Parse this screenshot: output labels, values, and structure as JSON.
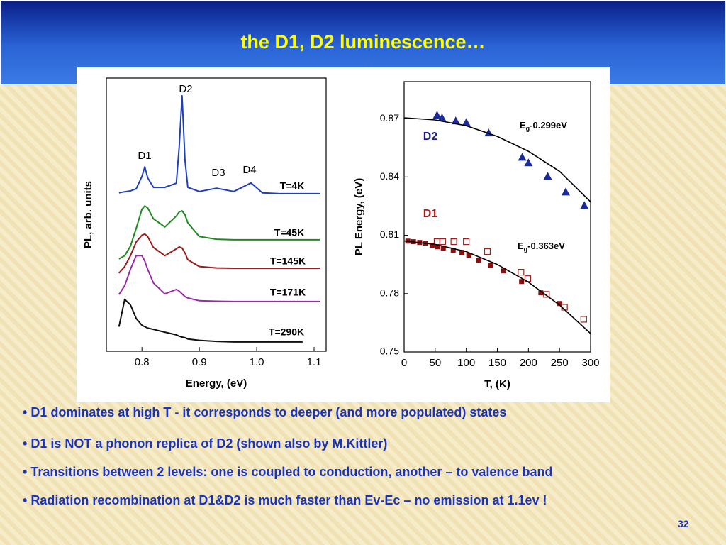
{
  "header": {
    "title": "the D1, D2 luminescence…"
  },
  "bullets": [
    "D1 dominates at high T - it corresponds to deeper (and more populated) states",
    "D1 is NOT a phonon replica of D2 (shown also by M.Kittler)",
    "Transitions between 2 levels: one is coupled to conduction, another – to valence band",
    "Radiation recombination at D1&D2 is much faster than Ev-Ec – no emission at 1.1ev !"
  ],
  "page_number": "32",
  "chart_data": [
    {
      "type": "line",
      "x_label": "Energy, (eV)",
      "y_label": "PL, arb. units",
      "xlim": [
        0.738,
        1.121
      ],
      "ylim": [
        0,
        10
      ],
      "xticks": [
        0.8,
        0.9,
        {
          "value": 1,
          "label": "1.0"
        },
        1.1
      ],
      "x": [
        0.76,
        0.77,
        0.78,
        0.79,
        0.8,
        0.805,
        0.81,
        0.82,
        0.84,
        0.86,
        0.865,
        0.87,
        0.875,
        0.88,
        0.9,
        0.93,
        0.96,
        0.99,
        1.01,
        1.04,
        1.08,
        1.11
      ],
      "annotations": [
        "D2",
        "D1",
        "D3",
        "D4"
      ],
      "series": [
        {
          "name": "T=4K",
          "color": "#1f3fbf",
          "values": [
            5.8,
            5.84,
            5.87,
            5.95,
            6.4,
            6.75,
            6.35,
            6.0,
            6.0,
            6.15,
            7.5,
            9.35,
            7.0,
            6.0,
            5.85,
            5.97,
            5.85,
            6.16,
            5.8,
            5.77,
            5.77,
            5.77
          ]
        },
        {
          "name": "T=45K",
          "color": "#1e8a1e",
          "values": [
            3.38,
            3.5,
            3.85,
            4.5,
            5.2,
            5.32,
            5.25,
            4.85,
            4.55,
            4.95,
            5.1,
            5.14,
            5.0,
            4.7,
            4.2,
            4.1,
            4.08,
            4.08,
            4.08,
            4.08,
            4.08,
            4.08
          ]
        },
        {
          "name": "T=145K",
          "color": "#9a1c1c",
          "values": [
            2.86,
            3.1,
            3.5,
            4.0,
            4.25,
            4.29,
            4.2,
            3.8,
            3.5,
            3.75,
            3.82,
            3.78,
            3.6,
            3.35,
            3.1,
            3.05,
            3.04,
            3.04,
            3.04,
            3.04,
            3.04,
            3.04
          ]
        },
        {
          "name": "T=171K",
          "color": "#9a2aa8",
          "values": [
            2.08,
            2.4,
            3.0,
            3.5,
            3.5,
            3.3,
            3.0,
            2.5,
            2.1,
            2.26,
            2.2,
            2.1,
            2.0,
            1.95,
            1.85,
            1.83,
            1.82,
            1.82,
            1.82,
            1.82,
            1.82,
            1.82
          ]
        },
        {
          "name": "T=290K",
          "color": "#111111",
          "values": [
            0.9,
            1.9,
            1.7,
            1.2,
            0.95,
            0.9,
            0.85,
            0.8,
            0.7,
            0.6,
            0.55,
            0.52,
            0.5,
            0.45,
            0.4,
            0.36,
            0.34,
            0.34,
            0.34,
            0.34,
            0.34,
            null
          ]
        }
      ]
    },
    {
      "type": "scatter",
      "x_label": "T, (K)",
      "y_label": "PL Energy, (eV)",
      "xlim": [
        0,
        300
      ],
      "ylim": [
        0.75,
        0.889
      ],
      "xticks": [
        0,
        50,
        100,
        150,
        200,
        250,
        300
      ],
      "yticks": [
        0.75,
        0.78,
        0.81,
        0.84,
        0.87
      ],
      "labels": [
        {
          "text": "D2",
          "color": "#1a1a8a"
        },
        {
          "text": "D1",
          "color": "#b01818"
        }
      ],
      "fit_labels": [
        {
          "main": "E",
          "sub": "g",
          "rest": "-0.299eV"
        },
        {
          "main": "E",
          "sub": "g",
          "rest": "-0.363eV"
        }
      ],
      "series": [
        {
          "marker": "triangle",
          "color": "#1a2a9a",
          "x": [
            53,
            61,
            83,
            100,
            136,
            190,
            200,
            231,
            260,
            290
          ],
          "values": [
            0.8718,
            0.8704,
            0.8689,
            0.868,
            0.8627,
            0.8502,
            0.8473,
            0.8404,
            0.8323,
            0.8254
          ]
        },
        {
          "marker": "square",
          "color": "#8a1010",
          "x": [
            6,
            15,
            25,
            34,
            45,
            54,
            63,
            79,
            93,
            104,
            120,
            139,
            160,
            189,
            220,
            250
          ],
          "values": [
            0.807,
            0.8067,
            0.8063,
            0.806,
            0.8049,
            0.8041,
            0.8034,
            0.8023,
            0.8012,
            0.7998,
            0.7972,
            0.7946,
            0.7917,
            0.7862,
            0.7804,
            0.7749
          ]
        },
        {
          "marker": "open-square",
          "color": "#a02020",
          "x": [
            53,
            62,
            80,
            100,
            134,
            188,
            199,
            229,
            258,
            289
          ],
          "values": [
            0.8067,
            0.8067,
            0.8067,
            0.8067,
            0.8016,
            0.791,
            0.7877,
            0.7796,
            0.773,
            0.7668
          ]
        },
        {
          "marker": "line",
          "color": "#000000",
          "x": [
            0,
            50,
            100,
            150,
            200,
            250,
            300
          ],
          "values": [
            0.8704,
            0.8693,
            0.8663,
            0.8608,
            0.8532,
            0.8429,
            0.8272
          ]
        },
        {
          "marker": "line",
          "color": "#000000",
          "x": [
            0,
            50,
            100,
            150,
            200,
            250,
            300
          ],
          "values": [
            0.8071,
            0.8053,
            0.8016,
            0.795,
            0.7859,
            0.7741,
            0.7595
          ]
        }
      ]
    }
  ]
}
